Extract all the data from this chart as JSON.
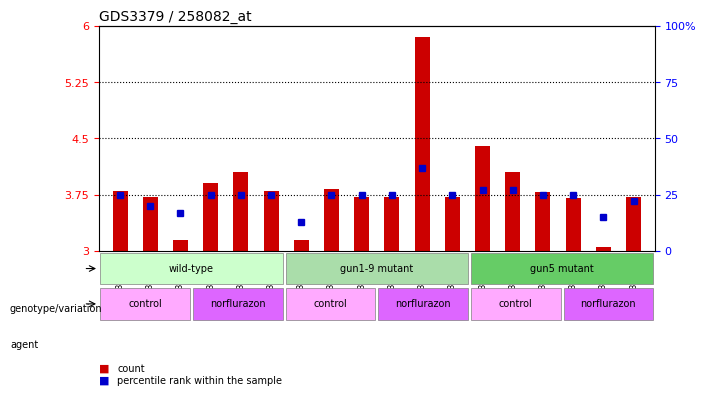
{
  "title": "GDS3379 / 258082_at",
  "samples": [
    "GSM323075",
    "GSM323076",
    "GSM323077",
    "GSM323078",
    "GSM323079",
    "GSM323080",
    "GSM323081",
    "GSM323082",
    "GSM323083",
    "GSM323084",
    "GSM323085",
    "GSM323086",
    "GSM323087",
    "GSM323088",
    "GSM323089",
    "GSM323090",
    "GSM323091",
    "GSM323092"
  ],
  "bar_values": [
    3.8,
    3.72,
    3.15,
    3.9,
    4.05,
    3.8,
    3.15,
    3.82,
    3.72,
    3.72,
    5.85,
    3.72,
    4.4,
    4.05,
    3.78,
    3.7,
    3.05,
    3.72
  ],
  "blue_values": [
    25,
    20,
    17,
    25,
    25,
    25,
    13,
    25,
    25,
    25,
    37,
    25,
    27,
    27,
    25,
    25,
    15,
    22
  ],
  "ylim_left": [
    3.0,
    6.0
  ],
  "ylim_right": [
    0,
    100
  ],
  "yticks_left": [
    3.0,
    3.75,
    4.5,
    5.25,
    6.0
  ],
  "yticks_right": [
    0,
    25,
    50,
    75,
    100
  ],
  "ytick_labels_left": [
    "3",
    "3.75",
    "4.5",
    "5.25",
    "6"
  ],
  "ytick_labels_right": [
    "0",
    "25",
    "50",
    "75",
    "100%"
  ],
  "hlines": [
    3.75,
    4.5,
    5.25
  ],
  "bar_color": "#cc0000",
  "blue_color": "#0000cc",
  "bar_width": 0.5,
  "groups": [
    {
      "label": "wild-type",
      "start": 0,
      "end": 5,
      "color": "#ccffcc"
    },
    {
      "label": "gun1-9 mutant",
      "start": 6,
      "end": 11,
      "color": "#aaddaa"
    },
    {
      "label": "gun5 mutant",
      "start": 12,
      "end": 17,
      "color": "#66cc66"
    }
  ],
  "agents": [
    {
      "label": "control",
      "start": 0,
      "end": 2,
      "color": "#ffaaff"
    },
    {
      "label": "norflurazon",
      "start": 3,
      "end": 5,
      "color": "#dd88ff"
    },
    {
      "label": "control",
      "start": 6,
      "end": 8,
      "color": "#ffaaff"
    },
    {
      "label": "norflurazon",
      "start": 9,
      "end": 11,
      "color": "#dd88ff"
    },
    {
      "label": "control",
      "start": 12,
      "end": 14,
      "color": "#ffaaff"
    },
    {
      "label": "norflurazon",
      "start": 15,
      "end": 17,
      "color": "#dd88ff"
    }
  ],
  "legend_count_color": "#cc0000",
  "legend_pct_color": "#0000cc",
  "bg_color": "#f0f0f0"
}
